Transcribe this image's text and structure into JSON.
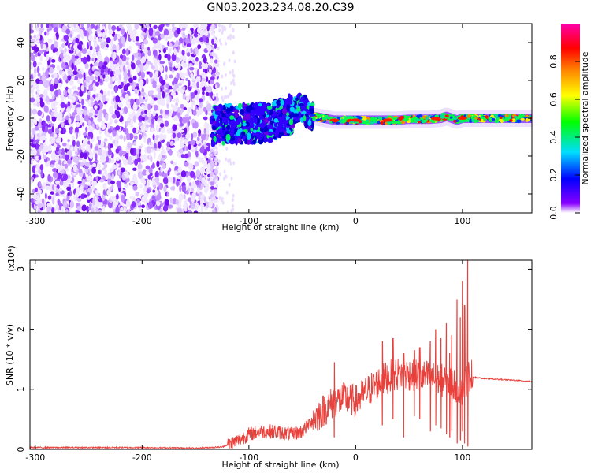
{
  "chart_data": [
    {
      "type": "heatmap",
      "title": "GN03.2023.234.08.20.C39",
      "xlabel": "Height of straight line (km)",
      "ylabel": "Frequency (Hz)",
      "xlim": [
        -305,
        165
      ],
      "ylim": [
        -50,
        50
      ],
      "x_ticks": [
        -300,
        -200,
        -100,
        0,
        100
      ],
      "y_ticks": [
        -40,
        -20,
        0,
        20,
        40
      ],
      "colorbar": {
        "label": "Normalized spectral amplitude",
        "range": [
          0,
          1
        ],
        "ticks": [
          "0.0",
          "0.2",
          "0.4",
          "0.6",
          "0.8"
        ],
        "tick_values": [
          0.0,
          0.2,
          0.4,
          0.6,
          0.8
        ],
        "colors": [
          "#ffffff",
          "#8800ff",
          "#0000ff",
          "#00ddff",
          "#00ff00",
          "#ffff00",
          "#ff8800",
          "#ff0000",
          "#ff00aa"
        ]
      },
      "noise_region_x": [
        -305,
        -135
      ],
      "signal_track": {
        "x": [
          -135,
          -120,
          -100,
          -80,
          -65,
          -55,
          -50,
          -45,
          -40,
          -30,
          -20,
          -10,
          0,
          10,
          20,
          30,
          40,
          50,
          60,
          70,
          80,
          85,
          90,
          95,
          100,
          110,
          120,
          140,
          165
        ],
        "y": [
          -4,
          -3,
          -3,
          -2,
          1,
          4,
          6,
          2,
          1,
          0,
          -1,
          -1,
          -1,
          -1,
          -1,
          -1,
          -1,
          -0.5,
          -0.5,
          -0.5,
          0,
          1,
          0,
          -1,
          0,
          0,
          0,
          0,
          0
        ]
      }
    },
    {
      "type": "line",
      "xlabel": "Height of straight line (km)",
      "ylabel": "SNR (10 * v/v)",
      "y_multiplier": "(x10⁴)",
      "xlim": [
        -305,
        165
      ],
      "ylim": [
        0,
        3.15
      ],
      "x_ticks": [
        -300,
        -200,
        -100,
        0,
        100
      ],
      "y_ticks": [
        0,
        1,
        2,
        3
      ],
      "color": "#e8413c",
      "series": [
        {
          "x": [
            -305,
            -250,
            -200,
            -150,
            -125,
            -110,
            -100,
            -90,
            -80,
            -70,
            -60,
            -50,
            -40,
            -30,
            -20,
            -10,
            0,
            10,
            20,
            30,
            40,
            50,
            60,
            70,
            80,
            90,
            95,
            100,
            105,
            108,
            110,
            120,
            140,
            165
          ],
          "y": [
            0.03,
            0.03,
            0.03,
            0.02,
            0.04,
            0.15,
            0.25,
            0.3,
            0.3,
            0.28,
            0.25,
            0.3,
            0.5,
            0.65,
            0.8,
            0.85,
            0.8,
            0.95,
            1.1,
            1.2,
            1.25,
            1.25,
            1.22,
            1.2,
            1.15,
            1.1,
            1.05,
            1.0,
            1.2,
            1.25,
            1.2,
            1.18,
            1.16,
            1.13
          ],
          "spikes": {
            "x": [
              -20,
              25,
              35,
              45,
              55,
              60,
              70,
              75,
              80,
              85,
              88,
              90,
              95,
              98,
              100,
              102,
              105
            ],
            "hi": [
              1.45,
              1.8,
              1.85,
              1.6,
              1.65,
              1.7,
              1.8,
              2.0,
              1.85,
              2.1,
              1.6,
              1.9,
              2.5,
              2.2,
              2.8,
              2.4,
              3.15
            ],
            "lo": [
              0.2,
              0.4,
              0.5,
              0.2,
              0.55,
              0.5,
              0.3,
              0.4,
              0.35,
              0.25,
              0.2,
              0.3,
              0.1,
              0.15,
              0.3,
              0.1,
              0.05
            ]
          }
        }
      ]
    }
  ]
}
